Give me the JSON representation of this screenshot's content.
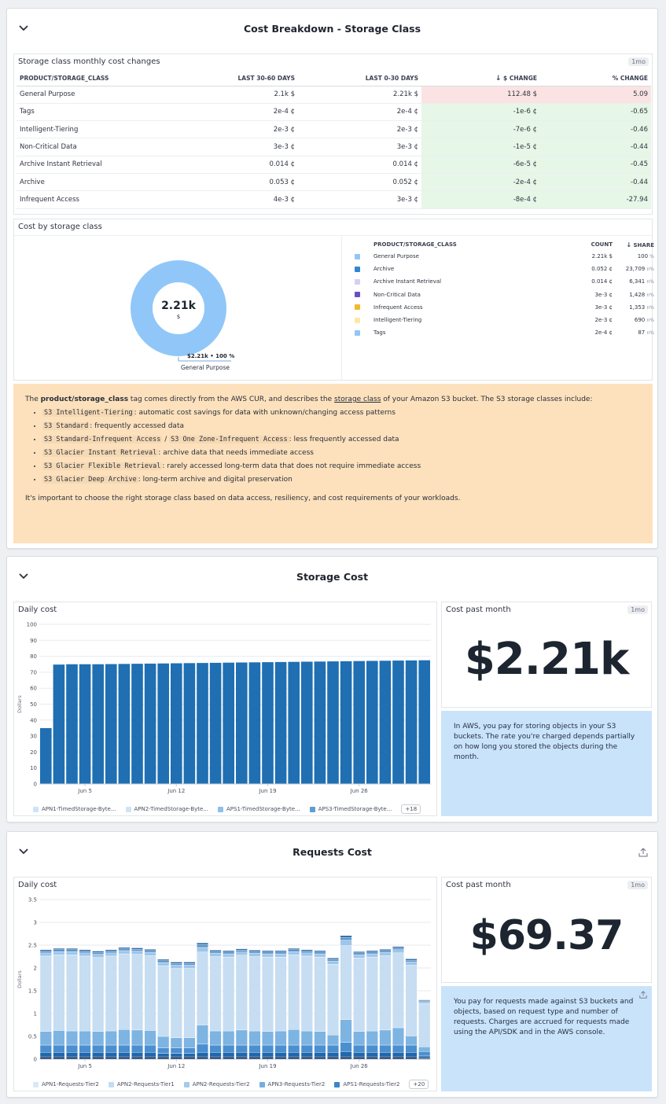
{
  "groups": {
    "storage_class": {
      "title": "Cost Breakdown - Storage Class",
      "table_widget": {
        "title": "Storage class monthly cost changes",
        "badge": "1mo",
        "headers": [
          "PRODUCT/STORAGE_CLASS",
          "LAST 30-60 DAYS",
          "LAST 0-30 DAYS",
          "$ CHANGE",
          "% CHANGE"
        ],
        "sort_arrow": "↓",
        "rows": [
          {
            "name": "General Purpose",
            "prev": "2.1k $",
            "curr": "2.21k $",
            "change": "112.48 $",
            "pct": "5.09",
            "dir": "up"
          },
          {
            "name": "Tags",
            "prev": "2e-4 ¢",
            "curr": "2e-4 ¢",
            "change": "-1e-6 ¢",
            "pct": "-0.65",
            "dir": "down"
          },
          {
            "name": "Intelligent-Tiering",
            "prev": "2e-3 ¢",
            "curr": "2e-3 ¢",
            "change": "-7e-6 ¢",
            "pct": "-0.46",
            "dir": "down"
          },
          {
            "name": "Non-Critical Data",
            "prev": "3e-3 ¢",
            "curr": "3e-3 ¢",
            "change": "-1e-5 ¢",
            "pct": "-0.44",
            "dir": "down"
          },
          {
            "name": "Archive Instant Retrieval",
            "prev": "0.014 ¢",
            "curr": "0.014 ¢",
            "change": "-6e-5 ¢",
            "pct": "-0.45",
            "dir": "down"
          },
          {
            "name": "Archive",
            "prev": "0.053 ¢",
            "curr": "0.052 ¢",
            "change": "-2e-4 ¢",
            "pct": "-0.44",
            "dir": "down"
          },
          {
            "name": "Infrequent Access",
            "prev": "4e-3 ¢",
            "curr": "3e-3 ¢",
            "change": "-8e-4 ¢",
            "pct": "-27.94",
            "dir": "down"
          }
        ]
      },
      "pie_widget": {
        "title": "Cost by storage class",
        "center_value": "2.21k",
        "center_unit": "$",
        "callout": "$2.21k • 100 %",
        "callout_label": "General Purpose",
        "legend_headers": [
          "PRODUCT/STORAGE_CLASS",
          "COUNT",
          "SHARE"
        ],
        "sort_arrow": "↓",
        "legend": [
          {
            "name": "General Purpose",
            "count": "2.21k $",
            "share": "100",
            "unit": "%",
            "color": "#90c7f8"
          },
          {
            "name": "Archive",
            "count": "0.052 ¢",
            "share": "23,709",
            "unit": "n%",
            "color": "#2e86d4"
          },
          {
            "name": "Archive Instant Retrieval",
            "count": "0.014 ¢",
            "share": "6,341",
            "unit": "n%",
            "color": "#d9cdf5"
          },
          {
            "name": "Non-Critical Data",
            "count": "3e-3 ¢",
            "share": "1,428",
            "unit": "n%",
            "color": "#6a4fc9"
          },
          {
            "name": "Infrequent Access",
            "count": "3e-3 ¢",
            "share": "1,353",
            "unit": "n%",
            "color": "#f2b92e"
          },
          {
            "name": "Intelligent-Tiering",
            "count": "2e-3 ¢",
            "share": "690",
            "unit": "n%",
            "color": "#fbe9a6"
          },
          {
            "name": "Tags",
            "count": "2e-4 ¢",
            "share": "87",
            "unit": "n%",
            "color": "#90c7f8"
          }
        ]
      },
      "note": {
        "intro_pre": "The ",
        "intro_bold": "product/storage_class",
        "intro_mid": " tag comes directly from the AWS CUR, and describes the ",
        "intro_link": "storage class",
        "intro_post": " of your Amazon S3 bucket. The S3 storage classes include:",
        "items": [
          {
            "codes": [
              "S3 Intelligent-Tiering"
            ],
            "text": ": automatic cost savings for data with unknown/changing access patterns"
          },
          {
            "codes": [
              "S3 Standard"
            ],
            "text": ": frequently accessed data"
          },
          {
            "codes": [
              "S3 Standard-Infrequent Access",
              "S3 One Zone-Infrequent Access"
            ],
            "sep": " / ",
            "text": ": less frequently accessed data"
          },
          {
            "codes": [
              "S3 Glacier Instant Retrieval"
            ],
            "text": ": archive data that needs immediate access"
          },
          {
            "codes": [
              "S3 Glacier Flexible Retrieval"
            ],
            "text": ": rarely accessed long-term data that does not require immediate access"
          },
          {
            "codes": [
              "S3 Glacier Deep Archive"
            ],
            "text": ": long-term archive and digital preservation"
          }
        ],
        "outro": "It's important to choose the right storage class based on data access, resiliency, and cost requirements of your workloads."
      }
    },
    "storage_cost": {
      "title": "Storage Cost",
      "chart_title": "Daily cost",
      "month_title": "Cost past month",
      "badge": "1mo",
      "big_value": "$2.21k",
      "info": "In AWS, you pay for storing objects in your S3 buckets. The rate you're charged depends partially on how long you stored the objects during the month.",
      "legend": [
        "APN1-TimedStorage-Byte...",
        "APN2-TimedStorage-Byte...",
        "APS1-TimedStorage-Byte...",
        "APS3-TimedStorage-Byte..."
      ],
      "legend_colors": [
        "#cfe3f7",
        "#cfe3f7",
        "#8ec0ea",
        "#5b9fd4"
      ],
      "more": "+18"
    },
    "requests_cost": {
      "title": "Requests Cost",
      "chart_title": "Daily cost",
      "month_title": "Cost past month",
      "badge": "1mo",
      "big_value": "$69.37",
      "info": "You pay for requests made against S3 buckets and objects, based on request type and number of requests. Charges are accrued for requests made using the API/SDK and in the AWS console.",
      "legend": [
        "APN1-Requests-Tier2",
        "APN2-Requests-Tier1",
        "APN2-Requests-Tier2",
        "APN3-Requests-Tier2",
        "APS1-Requests-Tier2"
      ],
      "legend_colors": [
        "#d7e8f8",
        "#c3dcf3",
        "#a3cbec",
        "#74afe0",
        "#3a86c8"
      ],
      "more": "+20"
    }
  },
  "chart_data": [
    {
      "type": "bar",
      "title": "Daily cost",
      "ylabel": "Dollars",
      "ylim": [
        0,
        100
      ],
      "yticks": [
        0,
        10,
        20,
        30,
        40,
        50,
        60,
        70,
        80,
        90,
        100
      ],
      "xtick_labels": [
        "Jun 5",
        "Jun 12",
        "Jun 19",
        "Jun 26"
      ],
      "xtick_bar_index": [
        3,
        10,
        17,
        24
      ],
      "values": [
        35.0,
        74.8,
        75.0,
        75.0,
        75.0,
        75.1,
        75.2,
        75.3,
        75.4,
        75.5,
        75.6,
        75.7,
        75.8,
        75.9,
        76.0,
        76.1,
        76.2,
        76.3,
        76.4,
        76.5,
        76.6,
        76.7,
        76.8,
        76.9,
        77.0,
        77.1,
        77.2,
        77.3,
        77.4,
        77.5
      ],
      "color": "#1f6fb2"
    },
    {
      "type": "bar",
      "title": "Daily cost",
      "ylabel": "Dollars",
      "ylim": [
        0,
        3.5
      ],
      "yticks": [
        0,
        0.5,
        1,
        1.5,
        2,
        2.5,
        3,
        3.5
      ],
      "xtick_labels": [
        "Jun 5",
        "Jun 12",
        "Jun 19",
        "Jun 26"
      ],
      "xtick_bar_index": [
        3,
        10,
        17,
        24
      ],
      "series": [
        {
          "values": [
            0.05,
            0.05,
            0.05,
            0.05,
            0.05,
            0.05,
            0.05,
            0.05,
            0.05,
            0.05,
            0.05,
            0.05,
            0.05,
            0.05,
            0.05,
            0.05,
            0.05,
            0.05,
            0.05,
            0.05,
            0.05,
            0.05,
            0.05,
            0.05,
            0.05,
            0.05,
            0.05,
            0.05,
            0.05,
            0.03
          ],
          "color": "#0b2f5e"
        },
        {
          "values": [
            0.1,
            0.1,
            0.1,
            0.1,
            0.1,
            0.1,
            0.1,
            0.1,
            0.1,
            0.08,
            0.08,
            0.08,
            0.1,
            0.1,
            0.1,
            0.1,
            0.1,
            0.1,
            0.1,
            0.1,
            0.1,
            0.1,
            0.1,
            0.12,
            0.1,
            0.1,
            0.1,
            0.1,
            0.1,
            0.04
          ],
          "color": "#2068ad"
        },
        {
          "values": [
            0.16,
            0.16,
            0.16,
            0.16,
            0.16,
            0.16,
            0.16,
            0.16,
            0.16,
            0.12,
            0.12,
            0.12,
            0.18,
            0.16,
            0.16,
            0.16,
            0.16,
            0.16,
            0.16,
            0.16,
            0.16,
            0.16,
            0.16,
            0.2,
            0.16,
            0.16,
            0.16,
            0.16,
            0.16,
            0.1
          ],
          "color": "#4b8fd0"
        },
        {
          "values": [
            0.3,
            0.32,
            0.31,
            0.31,
            0.3,
            0.31,
            0.34,
            0.33,
            0.32,
            0.25,
            0.22,
            0.22,
            0.42,
            0.31,
            0.31,
            0.33,
            0.31,
            0.3,
            0.31,
            0.34,
            0.31,
            0.3,
            0.22,
            0.5,
            0.3,
            0.31,
            0.33,
            0.38,
            0.2,
            0.1
          ],
          "color": "#7db4e2"
        },
        {
          "values": [
            1.65,
            1.66,
            1.67,
            1.64,
            1.62,
            1.64,
            1.66,
            1.66,
            1.64,
            1.55,
            1.52,
            1.52,
            1.6,
            1.63,
            1.62,
            1.64,
            1.63,
            1.63,
            1.62,
            1.64,
            1.64,
            1.63,
            1.55,
            1.62,
            1.61,
            1.62,
            1.63,
            1.64,
            1.55,
            0.95
          ],
          "color": "#c6ddf2"
        },
        {
          "values": [
            0.07,
            0.07,
            0.07,
            0.07,
            0.07,
            0.07,
            0.07,
            0.07,
            0.07,
            0.07,
            0.07,
            0.07,
            0.1,
            0.07,
            0.07,
            0.07,
            0.07,
            0.07,
            0.07,
            0.07,
            0.07,
            0.07,
            0.07,
            0.12,
            0.07,
            0.07,
            0.07,
            0.07,
            0.07,
            0.04
          ],
          "color": "#9cc6ea"
        },
        {
          "values": [
            0.04,
            0.04,
            0.04,
            0.04,
            0.04,
            0.04,
            0.04,
            0.04,
            0.04,
            0.04,
            0.04,
            0.04,
            0.06,
            0.04,
            0.04,
            0.04,
            0.04,
            0.04,
            0.04,
            0.04,
            0.04,
            0.04,
            0.04,
            0.06,
            0.04,
            0.04,
            0.04,
            0.04,
            0.04,
            0.02
          ],
          "color": "#5b93c8"
        },
        {
          "values": [
            0.03,
            0.03,
            0.03,
            0.03,
            0.03,
            0.03,
            0.03,
            0.03,
            0.03,
            0.03,
            0.03,
            0.03,
            0.04,
            0.03,
            0.03,
            0.03,
            0.03,
            0.03,
            0.03,
            0.03,
            0.03,
            0.03,
            0.03,
            0.04,
            0.03,
            0.03,
            0.03,
            0.03,
            0.03,
            0.02
          ],
          "color": "#2d6aa8"
        }
      ]
    }
  ]
}
